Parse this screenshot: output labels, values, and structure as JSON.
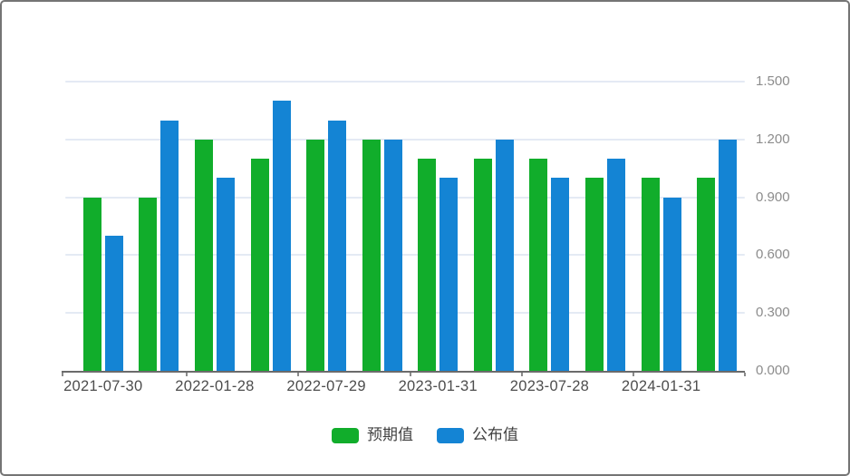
{
  "chart_data": {
    "type": "bar",
    "title": "",
    "x_tick_labels": [
      "2021-07-30",
      "2022-01-28",
      "2022-07-29",
      "2023-01-31",
      "2023-07-28",
      "2024-01-31"
    ],
    "num_groups": 12,
    "groups_per_tick_label": 2,
    "series": [
      {
        "name": "预期值",
        "color": "#11ad2b",
        "values": [
          0.9,
          0.9,
          1.2,
          1.1,
          1.2,
          1.2,
          1.1,
          1.1,
          1.1,
          1.0,
          1.0,
          1.0
        ]
      },
      {
        "name": "公布值",
        "color": "#1484d4",
        "values": [
          0.7,
          1.3,
          1.0,
          1.4,
          1.3,
          1.2,
          1.0,
          1.2,
          1.0,
          1.1,
          0.9,
          1.2
        ]
      }
    ],
    "y_axis": {
      "side": "right",
      "min": 0,
      "max": 1.5,
      "tick_values": [
        0,
        0.3,
        0.6,
        0.9,
        1.2,
        1.5
      ],
      "tick_labels": [
        "0.000",
        "0.300",
        "0.600",
        "0.900",
        "1.200",
        "1.500"
      ]
    },
    "grid": true,
    "legend_position": "bottom"
  },
  "legend": {
    "items": [
      {
        "label": "预期值",
        "color": "#11ad2b"
      },
      {
        "label": "公布值",
        "color": "#1484d4"
      }
    ]
  },
  "colors": {
    "background": "#ffffff",
    "border": "#757575",
    "gridline": "#e4eaf4",
    "axis_line": "#6b6b6b",
    "x_label": "#4d4d4d",
    "y_label": "#8c8c8c",
    "legend_text": "#404040"
  }
}
